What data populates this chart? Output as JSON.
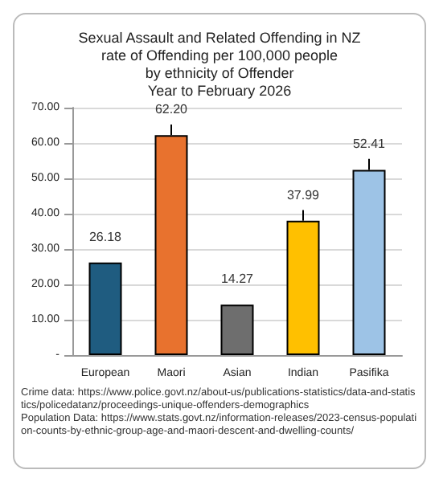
{
  "chart_data": {
    "type": "bar",
    "title": "Sexual Assault and Related Offending in NZ\nrate of Offending per 100,000 people\nby ethnicity of Offender\nYear to February 2026",
    "categories": [
      "European",
      "Maori",
      "Asian",
      "Indian",
      "Pasifika"
    ],
    "values": [
      26.18,
      62.2,
      14.27,
      37.99,
      52.41
    ],
    "colors": [
      "#1f5c80",
      "#e8722e",
      "#6e6e6e",
      "#ffc000",
      "#9dc3e6"
    ],
    "errors": [
      null,
      [
        62.2,
        65.2
      ],
      null,
      [
        37.99,
        41.0
      ],
      [
        52.41,
        55.5
      ]
    ],
    "value_labels": [
      "26.18",
      "62.20",
      "14.27",
      "37.99",
      "52.41"
    ],
    "ylim": [
      0,
      70
    ],
    "yticks": [
      {
        "value": 0,
        "label": "-"
      },
      {
        "value": 10,
        "label": "10.00"
      },
      {
        "value": 20,
        "label": "20.00"
      },
      {
        "value": 30,
        "label": "30.00"
      },
      {
        "value": 40,
        "label": "40.00"
      },
      {
        "value": 50,
        "label": "50.00"
      },
      {
        "value": 60,
        "label": "60.00"
      },
      {
        "value": 70,
        "label": "70.00"
      }
    ],
    "grid": "y",
    "annotations": [
      "Crime data: https://www.police.govt.nz/about-us/publications-statistics/data-and-statistics/policedatanz/proceedings-unique-offenders-demographics",
      "Population Data: https://www.stats.govt.nz/information-releases/2023-census-population-counts-by-ethnic-group-age-and-maori-descent-and-dwelling-counts/"
    ]
  }
}
